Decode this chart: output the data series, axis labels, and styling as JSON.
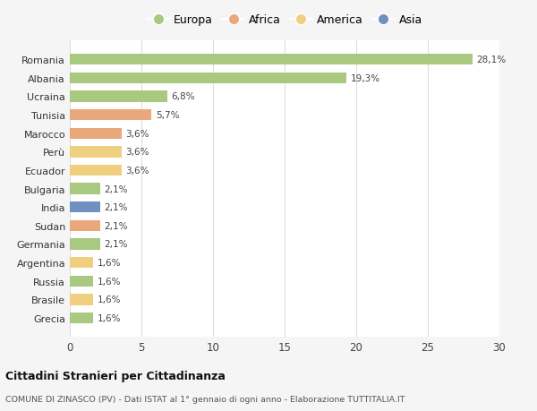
{
  "countries": [
    "Romania",
    "Albania",
    "Ucraina",
    "Tunisia",
    "Marocco",
    "Perù",
    "Ecuador",
    "Bulgaria",
    "India",
    "Sudan",
    "Germania",
    "Argentina",
    "Russia",
    "Brasile",
    "Grecia"
  ],
  "values": [
    28.1,
    19.3,
    6.8,
    5.7,
    3.6,
    3.6,
    3.6,
    2.1,
    2.1,
    2.1,
    2.1,
    1.6,
    1.6,
    1.6,
    1.6
  ],
  "labels": [
    "28,1%",
    "19,3%",
    "6,8%",
    "5,7%",
    "3,6%",
    "3,6%",
    "3,6%",
    "2,1%",
    "2,1%",
    "2,1%",
    "2,1%",
    "1,6%",
    "1,6%",
    "1,6%",
    "1,6%"
  ],
  "continents": [
    "Europa",
    "Europa",
    "Europa",
    "Africa",
    "Africa",
    "America",
    "America",
    "Europa",
    "Asia",
    "Africa",
    "Europa",
    "America",
    "Europa",
    "America",
    "Europa"
  ],
  "colors": {
    "Europa": "#a8c97f",
    "Africa": "#e8a87c",
    "America": "#f0d080",
    "Asia": "#7090c0"
  },
  "xlim": [
    0,
    30
  ],
  "xticks": [
    0,
    5,
    10,
    15,
    20,
    25,
    30
  ],
  "title": "Cittadini Stranieri per Cittadinanza",
  "subtitle": "COMUNE DI ZINASCO (PV) - Dati ISTAT al 1° gennaio di ogni anno - Elaborazione TUTTITALIA.IT",
  "background_color": "#f5f5f5",
  "plot_background": "#ffffff",
  "grid_color": "#dddddd",
  "legend_order": [
    "Europa",
    "Africa",
    "America",
    "Asia"
  ]
}
